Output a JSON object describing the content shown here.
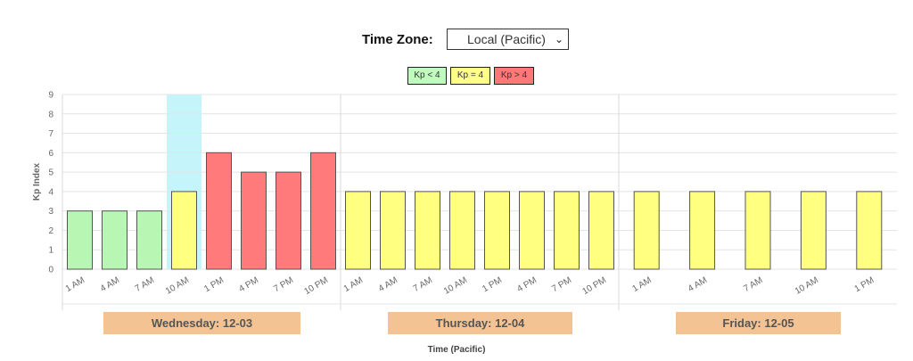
{
  "timezone": {
    "label": "Time Zone:",
    "selected": "Local (Pacific)"
  },
  "legend": [
    {
      "label": "Kp < 4",
      "color": "#c0fbbe"
    },
    {
      "label": "Kp = 4",
      "color": "#ffff88"
    },
    {
      "label": "Kp > 4",
      "color": "#ff7777"
    }
  ],
  "colors": {
    "low": "#b7f7b3",
    "mid": "#ffff80",
    "high": "#ff7a7a",
    "highlight": "#c5f5fb",
    "day_label_bg": "#f3c393"
  },
  "chart_data": {
    "type": "bar",
    "ylabel": "Kp Index",
    "xlabel": "Time (Pacific)",
    "ylim": [
      0,
      9
    ],
    "yticks": [
      0,
      1,
      2,
      3,
      4,
      5,
      6,
      7,
      8,
      9
    ],
    "grid": true,
    "days": [
      {
        "label": "Wednesday: 12-03",
        "categories": [
          "1 AM",
          "4 AM",
          "7 AM",
          "10 AM",
          "1 PM",
          "4 PM",
          "7 PM",
          "10 PM"
        ],
        "values": [
          3,
          3,
          3,
          4,
          6,
          5,
          5,
          6
        ],
        "highlight_index": 3
      },
      {
        "label": "Thursday: 12-04",
        "categories": [
          "1 AM",
          "4 AM",
          "7 AM",
          "10 AM",
          "1 PM",
          "4 PM",
          "7 PM",
          "10 PM"
        ],
        "values": [
          4,
          4,
          4,
          4,
          4,
          4,
          4,
          4
        ]
      },
      {
        "label": "Friday: 12-05",
        "categories": [
          "1 AM",
          "4 AM",
          "7 AM",
          "10 AM",
          "1 PM"
        ],
        "values": [
          4,
          4,
          4,
          4,
          4
        ]
      }
    ]
  }
}
